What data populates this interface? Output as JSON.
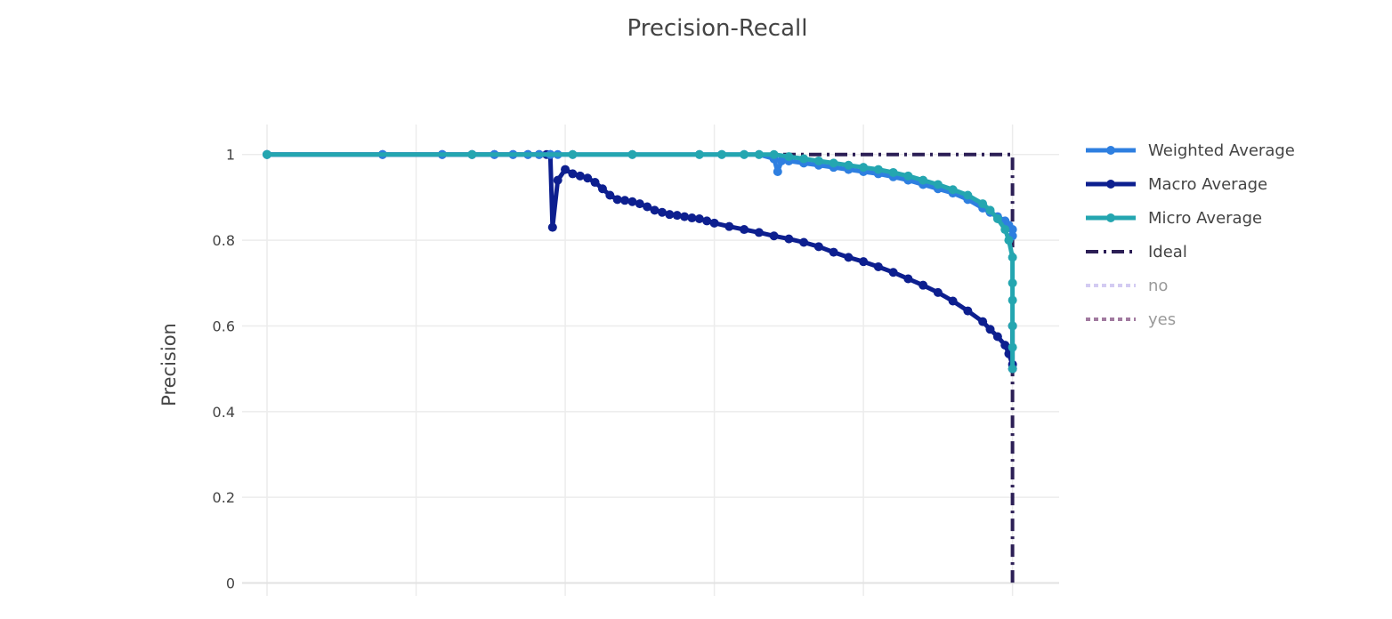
{
  "chart_data": {
    "type": "line",
    "title": "Precision-Recall",
    "ylabel": "Precision",
    "xlabel": "",
    "xlim": [
      0,
      1.0625
    ],
    "ylim": [
      -0.03,
      1.07
    ],
    "yticks": [
      0,
      0.2,
      0.4,
      0.6,
      0.8,
      1
    ],
    "ytick_labels": [
      "0",
      "0.2",
      "0.4",
      "0.6",
      "0.8",
      "1"
    ],
    "xgrid": [
      0,
      0.2,
      0.4,
      0.6,
      0.8,
      1
    ],
    "grid": true,
    "legend_position": "right",
    "series": [
      {
        "name": "Weighted Average",
        "color": "#2e7fe0",
        "dash": "solid",
        "markers": true,
        "muted": false,
        "x": [
          0,
          0.155,
          0.235,
          0.275,
          0.305,
          0.33,
          0.35,
          0.365,
          0.38,
          0.39,
          0.41,
          0.49,
          0.58,
          0.61,
          0.64,
          0.66,
          0.68,
          0.685,
          0.69,
          0.7,
          0.72,
          0.74,
          0.76,
          0.78,
          0.8,
          0.82,
          0.84,
          0.86,
          0.88,
          0.9,
          0.92,
          0.94,
          0.96,
          0.97,
          0.98,
          0.99,
          0.995,
          1.0,
          1.0
        ],
        "y": [
          1,
          1,
          1,
          1,
          1,
          1,
          1,
          1,
          1,
          1,
          1,
          1,
          1,
          1,
          1,
          1,
          0.99,
          0.96,
          0.985,
          0.985,
          0.98,
          0.975,
          0.97,
          0.965,
          0.96,
          0.955,
          0.948,
          0.94,
          0.93,
          0.92,
          0.91,
          0.895,
          0.875,
          0.865,
          0.855,
          0.845,
          0.835,
          0.825,
          0.81
        ]
      },
      {
        "name": "Macro Average",
        "color": "#0d1f8f",
        "dash": "solid",
        "markers": true,
        "muted": false,
        "x": [
          0,
          0.155,
          0.235,
          0.275,
          0.305,
          0.33,
          0.35,
          0.365,
          0.375,
          0.38,
          0.383,
          0.39,
          0.4,
          0.41,
          0.42,
          0.43,
          0.44,
          0.45,
          0.46,
          0.47,
          0.48,
          0.49,
          0.5,
          0.51,
          0.52,
          0.53,
          0.54,
          0.55,
          0.56,
          0.57,
          0.58,
          0.59,
          0.6,
          0.62,
          0.64,
          0.66,
          0.68,
          0.7,
          0.72,
          0.74,
          0.76,
          0.78,
          0.8,
          0.82,
          0.84,
          0.86,
          0.88,
          0.9,
          0.92,
          0.94,
          0.96,
          0.97,
          0.98,
          0.99,
          0.995,
          1.0,
          1.0,
          1.0
        ],
        "y": [
          1,
          1,
          1,
          1,
          1,
          1,
          1,
          1,
          1,
          1,
          0.83,
          0.94,
          0.965,
          0.955,
          0.95,
          0.945,
          0.935,
          0.92,
          0.905,
          0.895,
          0.893,
          0.89,
          0.885,
          0.878,
          0.87,
          0.865,
          0.86,
          0.858,
          0.855,
          0.852,
          0.85,
          0.845,
          0.84,
          0.832,
          0.825,
          0.818,
          0.81,
          0.803,
          0.795,
          0.785,
          0.772,
          0.76,
          0.75,
          0.738,
          0.725,
          0.71,
          0.695,
          0.678,
          0.658,
          0.635,
          0.61,
          0.592,
          0.575,
          0.555,
          0.535,
          0.51,
          0.6,
          0.5
        ]
      },
      {
        "name": "Micro Average",
        "color": "#24a6b0",
        "dash": "solid",
        "markers": true,
        "muted": false,
        "x": [
          0,
          0.275,
          0.41,
          0.49,
          0.58,
          0.61,
          0.64,
          0.66,
          0.68,
          0.7,
          0.72,
          0.74,
          0.76,
          0.78,
          0.8,
          0.82,
          0.84,
          0.86,
          0.88,
          0.9,
          0.92,
          0.94,
          0.96,
          0.97,
          0.98,
          0.99,
          0.995,
          1.0,
          1.0,
          1.0,
          1.0,
          1.0,
          1.0
        ],
        "y": [
          1,
          1,
          1,
          1,
          1,
          1,
          1,
          1,
          1,
          0.995,
          0.99,
          0.985,
          0.98,
          0.975,
          0.97,
          0.965,
          0.958,
          0.95,
          0.94,
          0.93,
          0.918,
          0.905,
          0.885,
          0.87,
          0.85,
          0.825,
          0.8,
          0.76,
          0.7,
          0.66,
          0.6,
          0.55,
          0.5
        ]
      },
      {
        "name": "Ideal",
        "color": "#2b1e55",
        "dash": "dashdot",
        "markers": false,
        "muted": false,
        "x": [
          0,
          1,
          1
        ],
        "y": [
          1,
          1,
          0
        ]
      },
      {
        "name": "no",
        "color": "#c9bff0",
        "dash": "dot",
        "markers": false,
        "muted": true,
        "x": [],
        "y": []
      },
      {
        "name": "yes",
        "color": "#8a5a88",
        "dash": "dot",
        "markers": false,
        "muted": true,
        "x": [],
        "y": []
      }
    ]
  }
}
